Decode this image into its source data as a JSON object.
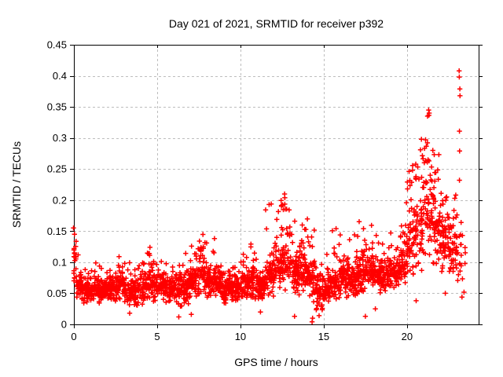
{
  "chart_data": {
    "type": "scatter",
    "title": "Day 021 of 2021, SRMTID for receiver p392",
    "xlabel": "GPS time / hours",
    "ylabel": "SRMTID / TECUs",
    "xlim": [
      0,
      24.3
    ],
    "ylim": [
      0,
      0.45
    ],
    "xticks": [
      0,
      5,
      10,
      15,
      20
    ],
    "xtick_labels": [
      "0",
      "5",
      "10",
      "15",
      "20"
    ],
    "yticks": [
      0,
      0.05,
      0.1,
      0.15,
      0.2,
      0.25,
      0.3,
      0.35,
      0.4,
      0.45
    ],
    "ytick_labels": [
      "0",
      "0.05",
      "0.1",
      "0.15",
      "0.2",
      "0.25",
      "0.3",
      "0.35",
      "0.4",
      "0.45"
    ],
    "grid": {
      "show": true,
      "style": "dashed",
      "color": "#bdbdbd"
    },
    "axis_color": "#000000",
    "background": "#ffffff",
    "marker": {
      "shape": "plus",
      "color": "#ff0000",
      "size": 7,
      "stroke_width": 1.5
    },
    "series": [
      {
        "name": "SRMTID",
        "seed": 20210121,
        "segments": [
          [
            0.0,
            0.15,
            20,
            0.05,
            0.155,
            0.16,
            0.05
          ],
          [
            0.15,
            0.5,
            38,
            0.035,
            0.09,
            0.115,
            0.05
          ],
          [
            0.5,
            1.0,
            55,
            0.03,
            0.08,
            0.1,
            0.06
          ],
          [
            1.0,
            1.5,
            55,
            0.035,
            0.085,
            0.105,
            0.06
          ],
          [
            1.5,
            2.0,
            55,
            0.03,
            0.08,
            0.095,
            0.05
          ],
          [
            2.0,
            2.5,
            55,
            0.03,
            0.085,
            0.1,
            0.06
          ],
          [
            2.5,
            3.0,
            55,
            0.035,
            0.09,
            0.11,
            0.06
          ],
          [
            3.0,
            3.5,
            55,
            0.025,
            0.08,
            0.1,
            0.05
          ],
          [
            3.5,
            4.0,
            55,
            0.025,
            0.085,
            0.1,
            0.05
          ],
          [
            4.0,
            4.5,
            55,
            0.03,
            0.09,
            0.12,
            0.07
          ],
          [
            4.5,
            5.0,
            55,
            0.035,
            0.095,
            0.125,
            0.08
          ],
          [
            5.0,
            5.5,
            55,
            0.03,
            0.09,
            0.12,
            0.07
          ],
          [
            5.5,
            6.0,
            55,
            0.03,
            0.085,
            0.1,
            0.05
          ],
          [
            6.0,
            6.5,
            55,
            0.025,
            0.09,
            0.11,
            0.06
          ],
          [
            6.5,
            7.0,
            55,
            0.03,
            0.095,
            0.12,
            0.07
          ],
          [
            7.0,
            7.5,
            55,
            0.04,
            0.105,
            0.135,
            0.1
          ],
          [
            7.5,
            8.0,
            55,
            0.045,
            0.115,
            0.145,
            0.1
          ],
          [
            8.0,
            8.5,
            55,
            0.04,
            0.1,
            0.15,
            0.08
          ],
          [
            8.5,
            9.0,
            55,
            0.035,
            0.09,
            0.11,
            0.05
          ],
          [
            9.0,
            9.5,
            55,
            0.03,
            0.085,
            0.1,
            0.05
          ],
          [
            9.5,
            10.0,
            55,
            0.035,
            0.09,
            0.105,
            0.05
          ],
          [
            10.0,
            10.5,
            55,
            0.035,
            0.09,
            0.12,
            0.06
          ],
          [
            10.5,
            11.0,
            55,
            0.04,
            0.095,
            0.13,
            0.08
          ],
          [
            11.0,
            11.5,
            55,
            0.03,
            0.09,
            0.11,
            0.05
          ],
          [
            11.5,
            12.0,
            55,
            0.04,
            0.11,
            0.2,
            0.18
          ],
          [
            12.0,
            12.5,
            55,
            0.05,
            0.13,
            0.215,
            0.2
          ],
          [
            12.5,
            13.0,
            55,
            0.05,
            0.14,
            0.215,
            0.2
          ],
          [
            13.0,
            13.5,
            55,
            0.045,
            0.12,
            0.17,
            0.15
          ],
          [
            13.5,
            14.0,
            55,
            0.045,
            0.125,
            0.17,
            0.15
          ],
          [
            14.0,
            14.5,
            55,
            0.03,
            0.12,
            0.17,
            0.12
          ],
          [
            14.5,
            15.0,
            55,
            0.02,
            0.09,
            0.12,
            0.06
          ],
          [
            15.0,
            15.5,
            55,
            0.025,
            0.095,
            0.12,
            0.06
          ],
          [
            15.5,
            16.0,
            55,
            0.035,
            0.1,
            0.155,
            0.08
          ],
          [
            16.0,
            16.5,
            55,
            0.04,
            0.11,
            0.165,
            0.1
          ],
          [
            16.5,
            17.0,
            55,
            0.04,
            0.105,
            0.15,
            0.08
          ],
          [
            17.0,
            17.5,
            55,
            0.045,
            0.115,
            0.17,
            0.1
          ],
          [
            17.5,
            18.0,
            55,
            0.05,
            0.12,
            0.21,
            0.12
          ],
          [
            18.0,
            18.5,
            55,
            0.05,
            0.115,
            0.16,
            0.08
          ],
          [
            18.5,
            19.0,
            55,
            0.05,
            0.11,
            0.14,
            0.07
          ],
          [
            19.0,
            19.5,
            55,
            0.055,
            0.12,
            0.15,
            0.08
          ],
          [
            19.5,
            20.0,
            55,
            0.06,
            0.13,
            0.21,
            0.14
          ],
          [
            20.0,
            20.5,
            55,
            0.065,
            0.18,
            0.27,
            0.2
          ],
          [
            20.5,
            21.0,
            55,
            0.075,
            0.22,
            0.3,
            0.25
          ],
          [
            21.0,
            21.5,
            55,
            0.09,
            0.26,
            0.345,
            0.25
          ],
          [
            21.5,
            22.0,
            55,
            0.09,
            0.22,
            0.28,
            0.2
          ],
          [
            22.0,
            22.5,
            55,
            0.08,
            0.19,
            0.23,
            0.15
          ],
          [
            22.5,
            23.0,
            50,
            0.07,
            0.17,
            0.21,
            0.12
          ],
          [
            23.0,
            23.3,
            14,
            0.05,
            0.16,
            0.19,
            0.1
          ],
          [
            23.3,
            23.5,
            6,
            0.05,
            0.15,
            0.15,
            0.0
          ]
        ],
        "outliers": [
          [
            21.3,
            0.345
          ],
          [
            21.33,
            0.34
          ],
          [
            23.13,
            0.408
          ],
          [
            23.14,
            0.398
          ],
          [
            23.17,
            0.379
          ],
          [
            23.18,
            0.368
          ],
          [
            23.15,
            0.311
          ],
          [
            23.16,
            0.279
          ],
          [
            23.15,
            0.232
          ],
          [
            3.35,
            0.018
          ],
          [
            6.3,
            0.012
          ],
          [
            7.05,
            0.016
          ],
          [
            11.2,
            0.02
          ],
          [
            13.25,
            0.013
          ],
          [
            14.3,
            0.004
          ],
          [
            14.33,
            0.01
          ],
          [
            14.72,
            0.014
          ],
          [
            17.5,
            0.013
          ],
          [
            18.1,
            0.025
          ],
          [
            20.55,
            0.038
          ],
          [
            22.3,
            0.05
          ],
          [
            23.3,
            0.044
          ]
        ]
      }
    ]
  }
}
